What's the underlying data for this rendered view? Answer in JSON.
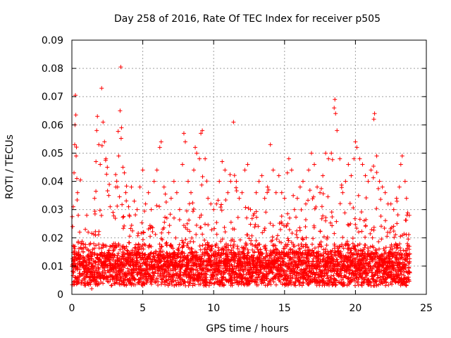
{
  "chart_data": {
    "type": "scatter",
    "title": "Day 258 of 2016, Rate Of TEC Index for receiver p505",
    "xlabel": "GPS time / hours",
    "ylabel": "ROTI / TECUs",
    "xlim": [
      0,
      25
    ],
    "ylim": [
      0,
      0.09
    ],
    "xticks": [
      0,
      5,
      10,
      15,
      20,
      25
    ],
    "xtick_labels": [
      "0",
      "5",
      "10",
      "15",
      "20",
      "25"
    ],
    "yticks": [
      0,
      0.01,
      0.02,
      0.03,
      0.04,
      0.05,
      0.06,
      0.07,
      0.08,
      0.09
    ],
    "ytick_labels": [
      "0",
      "0.01",
      "0.02",
      "0.03",
      "0.04",
      "0.05",
      "0.06",
      "0.07",
      "0.08",
      "0.09"
    ],
    "grid": true,
    "marker": "+",
    "series": [
      {
        "name": "ROTI",
        "color": "#ff0000",
        "points": [
          [
            0.05,
            0.024
          ],
          [
            0.1,
            0.031
          ],
          [
            0.15,
            0.043
          ],
          [
            0.2,
            0.053
          ],
          [
            0.22,
            0.06
          ],
          [
            0.25,
            0.0705
          ],
          [
            0.28,
            0.0635
          ],
          [
            0.3,
            0.049
          ],
          [
            0.35,
            0.041
          ],
          [
            0.4,
            0.036
          ],
          [
            0.45,
            0.028
          ],
          [
            0.55,
            0.022
          ],
          [
            0.65,
            0.018
          ],
          [
            0.8,
            0.015
          ],
          [
            0.95,
            0.023
          ],
          [
            1.05,
            0.028
          ],
          [
            1.15,
            0.022
          ],
          [
            1.3,
            0.009
          ],
          [
            1.4,
            0.002
          ],
          [
            1.5,
            0.006
          ],
          [
            1.6,
            0.034
          ],
          [
            1.7,
            0.047
          ],
          [
            1.75,
            0.058
          ],
          [
            1.8,
            0.063
          ],
          [
            1.9,
            0.053
          ],
          [
            2.0,
            0.046
          ],
          [
            2.1,
            0.073
          ],
          [
            2.2,
            0.061
          ],
          [
            2.3,
            0.054
          ],
          [
            2.4,
            0.048
          ],
          [
            2.5,
            0.045
          ],
          [
            2.6,
            0.035
          ],
          [
            2.7,
            0.031
          ],
          [
            2.9,
            0.029
          ],
          [
            3.1,
            0.038
          ],
          [
            3.3,
            0.049
          ],
          [
            3.4,
            0.065
          ],
          [
            3.45,
            0.0805
          ],
          [
            3.5,
            0.059
          ],
          [
            3.6,
            0.045
          ],
          [
            3.7,
            0.043
          ],
          [
            3.8,
            0.036
          ],
          [
            4.0,
            0.031
          ],
          [
            4.2,
            0.038
          ],
          [
            4.4,
            0.033
          ],
          [
            4.6,
            0.03
          ],
          [
            4.8,
            0.038
          ],
          [
            5.0,
            0.044
          ],
          [
            5.2,
            0.032
          ],
          [
            5.4,
            0.036
          ],
          [
            5.6,
            0.03
          ],
          [
            5.8,
            0.04
          ],
          [
            6.0,
            0.044
          ],
          [
            6.2,
            0.052
          ],
          [
            6.3,
            0.054
          ],
          [
            6.5,
            0.038
          ],
          [
            6.7,
            0.027
          ],
          [
            7.0,
            0.034
          ],
          [
            7.2,
            0.04
          ],
          [
            7.4,
            0.036
          ],
          [
            7.6,
            0.03
          ],
          [
            7.8,
            0.046
          ],
          [
            7.9,
            0.057
          ],
          [
            8.0,
            0.054
          ],
          [
            8.2,
            0.04
          ],
          [
            8.4,
            0.036
          ],
          [
            8.6,
            0.044
          ],
          [
            8.7,
            0.052
          ],
          [
            8.8,
            0.05
          ],
          [
            9.0,
            0.048
          ],
          [
            9.1,
            0.057
          ],
          [
            9.2,
            0.058
          ],
          [
            9.4,
            0.048
          ],
          [
            9.6,
            0.034
          ],
          [
            9.8,
            0.032
          ],
          [
            10.0,
            0.03
          ],
          [
            10.2,
            0.032
          ],
          [
            10.4,
            0.04
          ],
          [
            10.6,
            0.047
          ],
          [
            10.8,
            0.044
          ],
          [
            11.0,
            0.036
          ],
          [
            11.2,
            0.04
          ],
          [
            11.4,
            0.061
          ],
          [
            11.6,
            0.04
          ],
          [
            11.8,
            0.034
          ],
          [
            12.0,
            0.036
          ],
          [
            12.2,
            0.044
          ],
          [
            12.4,
            0.046
          ],
          [
            12.6,
            0.03
          ],
          [
            12.8,
            0.028
          ],
          [
            13.0,
            0.036
          ],
          [
            13.2,
            0.04
          ],
          [
            13.4,
            0.042
          ],
          [
            13.6,
            0.034
          ],
          [
            13.8,
            0.038
          ],
          [
            14.0,
            0.053
          ],
          [
            14.2,
            0.044
          ],
          [
            14.4,
            0.036
          ],
          [
            14.6,
            0.042
          ],
          [
            14.8,
            0.036
          ],
          [
            15.0,
            0.034
          ],
          [
            15.2,
            0.043
          ],
          [
            15.3,
            0.048
          ],
          [
            15.5,
            0.044
          ],
          [
            15.7,
            0.03
          ],
          [
            15.9,
            0.034
          ],
          [
            16.1,
            0.038
          ],
          [
            16.3,
            0.04
          ],
          [
            16.5,
            0.032
          ],
          [
            16.7,
            0.044
          ],
          [
            16.9,
            0.05
          ],
          [
            17.1,
            0.046
          ],
          [
            17.3,
            0.038
          ],
          [
            17.5,
            0.036
          ],
          [
            17.7,
            0.042
          ],
          [
            17.9,
            0.05
          ],
          [
            18.1,
            0.048
          ],
          [
            18.3,
            0.05
          ],
          [
            18.5,
            0.066
          ],
          [
            18.55,
            0.069
          ],
          [
            18.6,
            0.064
          ],
          [
            18.7,
            0.058
          ],
          [
            18.9,
            0.048
          ],
          [
            19.1,
            0.036
          ],
          [
            19.3,
            0.04
          ],
          [
            19.5,
            0.046
          ],
          [
            19.7,
            0.042
          ],
          [
            19.9,
            0.048
          ],
          [
            20.0,
            0.054
          ],
          [
            20.1,
            0.052
          ],
          [
            20.3,
            0.048
          ],
          [
            20.5,
            0.046
          ],
          [
            20.7,
            0.042
          ],
          [
            20.9,
            0.04
          ],
          [
            21.1,
            0.044
          ],
          [
            21.3,
            0.062
          ],
          [
            21.35,
            0.064
          ],
          [
            21.5,
            0.049
          ],
          [
            21.7,
            0.04
          ],
          [
            21.9,
            0.038
          ],
          [
            22.1,
            0.036
          ],
          [
            22.3,
            0.032
          ],
          [
            22.5,
            0.032
          ],
          [
            22.7,
            0.03
          ],
          [
            22.9,
            0.034
          ],
          [
            23.1,
            0.038
          ],
          [
            23.2,
            0.046
          ],
          [
            23.3,
            0.049
          ],
          [
            23.5,
            0.04
          ],
          [
            23.6,
            0.034
          ],
          [
            23.8,
            0.028
          ]
        ]
      }
    ]
  }
}
